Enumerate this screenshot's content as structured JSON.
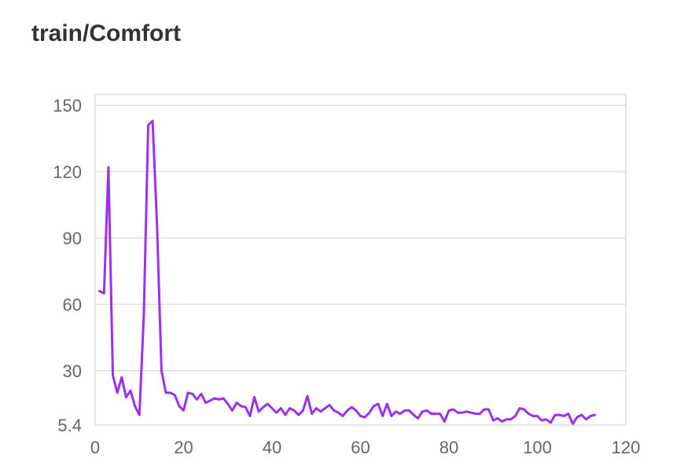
{
  "chart_data": {
    "type": "line",
    "title": "train/Comfort",
    "xlabel": "",
    "ylabel": "",
    "xlim": [
      0,
      120
    ],
    "ylim": [
      5.4,
      150
    ],
    "x_ticks": [
      "0",
      "20",
      "40",
      "60",
      "80",
      "100",
      "120"
    ],
    "y_ticks": [
      "5.4",
      "30",
      "60",
      "90",
      "120",
      "150"
    ],
    "x_tick_values": [
      0,
      20,
      40,
      60,
      80,
      100,
      120
    ],
    "y_tick_values": [
      5.4,
      30,
      60,
      90,
      120,
      150
    ],
    "grid": true,
    "line_color": "#9b30f2",
    "grid_color": "#dddddd",
    "series": [
      {
        "x": [
          1,
          2,
          3,
          4,
          5,
          6,
          7,
          8,
          9,
          10,
          11,
          12,
          13,
          14,
          15,
          16,
          17,
          18,
          19,
          20,
          21,
          22,
          23,
          24,
          25,
          26,
          27,
          28,
          29,
          30,
          31,
          32,
          33,
          34,
          35,
          36,
          37,
          38,
          39,
          40,
          41,
          42,
          43,
          44,
          45,
          46,
          47,
          48,
          49,
          50,
          51,
          52,
          53,
          54,
          55,
          56,
          57,
          58,
          59,
          60,
          61,
          62,
          63,
          64,
          65,
          66,
          67,
          68,
          69,
          70,
          71,
          72,
          73,
          74,
          75,
          76,
          77,
          78,
          79,
          80,
          81,
          82,
          83,
          84,
          85,
          86,
          87,
          88,
          89,
          90,
          91,
          92,
          93,
          94,
          95,
          96,
          97,
          98,
          99,
          100,
          101,
          102,
          103,
          104,
          105,
          106,
          107,
          108,
          109,
          110,
          111,
          112,
          113
        ],
        "y": [
          66,
          65,
          122,
          28,
          20,
          27,
          18,
          21,
          14,
          10,
          55,
          141,
          143,
          95,
          30,
          20,
          20,
          19,
          14,
          12,
          20,
          19.5,
          17,
          19.5,
          15.5,
          16.5,
          17.5,
          17,
          17.5,
          15,
          12,
          15.5,
          14,
          13.5,
          9.5,
          18,
          11.5,
          13.5,
          15,
          13,
          11,
          13,
          10,
          13,
          12,
          10,
          12,
          18.5,
          10.5,
          13,
          11.5,
          13,
          14.5,
          12,
          11,
          9.5,
          12,
          13.5,
          12,
          9.5,
          9,
          11,
          14,
          15,
          9.5,
          15,
          9.5,
          11.5,
          10.5,
          12,
          12,
          10,
          8.5,
          11.5,
          12,
          10.5,
          10.5,
          10.5,
          7,
          12,
          12.5,
          11,
          11,
          11.5,
          11,
          10.5,
          10.5,
          12.5,
          12.5,
          7.5,
          8.5,
          7,
          8,
          8,
          9.5,
          13,
          12.5,
          10.5,
          9.5,
          9.5,
          7.5,
          8,
          6.5,
          10,
          10,
          9.5,
          10.5,
          6,
          9,
          10,
          8,
          9.5,
          10
        ]
      }
    ]
  }
}
